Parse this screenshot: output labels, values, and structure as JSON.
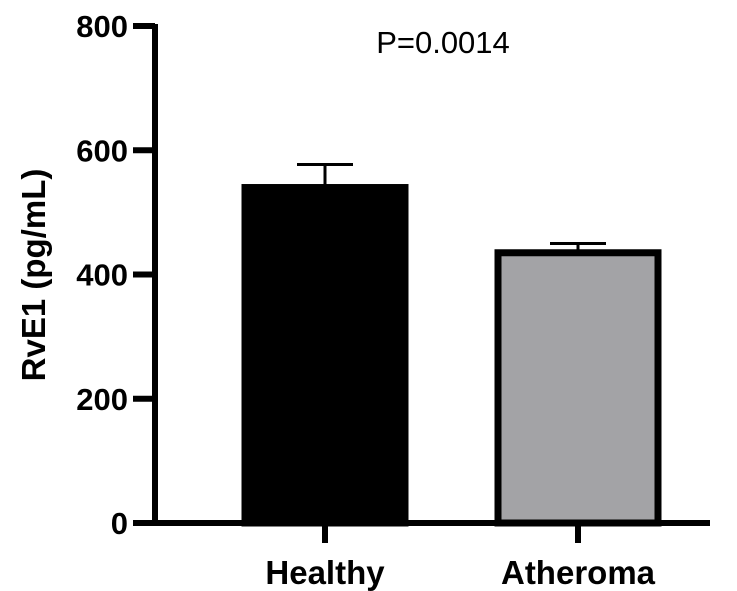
{
  "chart_data": {
    "type": "bar",
    "categories": [
      "Healthy",
      "Atheroma"
    ],
    "values": [
      540,
      435
    ],
    "error_upper": [
      577,
      450
    ],
    "bar_colors": [
      "#000000",
      "#a3a3a6"
    ],
    "ylabel": "RvE1 (pg/mL)",
    "xlabel": "",
    "ylim": [
      0,
      800
    ],
    "yticks": [
      0,
      200,
      400,
      600,
      800
    ],
    "annotation": "P=0.0014",
    "grid": false,
    "legend": "none"
  }
}
